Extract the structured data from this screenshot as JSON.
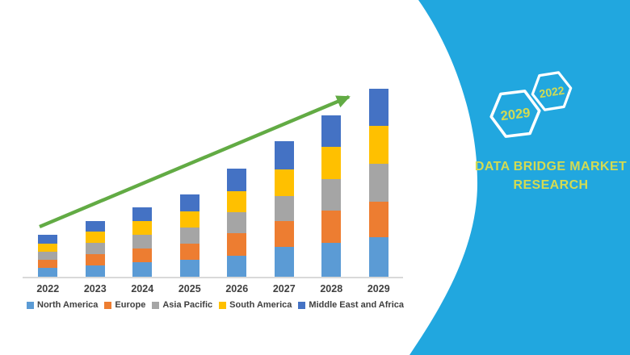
{
  "brand_panel": {
    "background_color": "#21A7DF",
    "text_color": "#D3DB52",
    "hexagon_large": {
      "label": "2029"
    },
    "hexagon_small": {
      "label": "2022"
    },
    "title_line1": "DATA BRIDGE MARKET",
    "title_line2": "RESEARCH"
  },
  "chart_data": {
    "type": "bar",
    "stacked": true,
    "title": "",
    "categories": [
      "2022",
      "2023",
      "2024",
      "2025",
      "2026",
      "2027",
      "2028",
      "2029"
    ],
    "series": [
      {
        "name": "North America",
        "color": "#5B9BD5",
        "values": [
          11,
          14,
          18,
          21,
          26,
          37,
          42,
          49
        ]
      },
      {
        "name": "Europe",
        "color": "#ED7D31",
        "values": [
          10,
          14,
          17,
          20,
          28,
          32,
          40,
          44
        ]
      },
      {
        "name": "Asia Pacific",
        "color": "#A5A5A5",
        "values": [
          10,
          14,
          17,
          20,
          26,
          31,
          39,
          47
        ]
      },
      {
        "name": "South America",
        "color": "#FFC000",
        "values": [
          10,
          14,
          17,
          20,
          26,
          33,
          40,
          47
        ]
      },
      {
        "name": "Middle East and Africa",
        "color": "#4472C4",
        "values": [
          11,
          13,
          17,
          21,
          28,
          35,
          39,
          46
        ]
      }
    ],
    "stack_order": "first-series-at-bottom",
    "xlabel": "",
    "ylabel": "",
    "ylim": [
      0,
      240
    ],
    "y_axis_visible": false,
    "gridlines": false,
    "legend_position": "bottom",
    "axis_line_color": "#D9D9D9",
    "label_color": "#3F3F3F",
    "trend_arrow": {
      "present": true,
      "color": "#62AB44",
      "from_category": "2022",
      "to_category": "2029"
    }
  }
}
